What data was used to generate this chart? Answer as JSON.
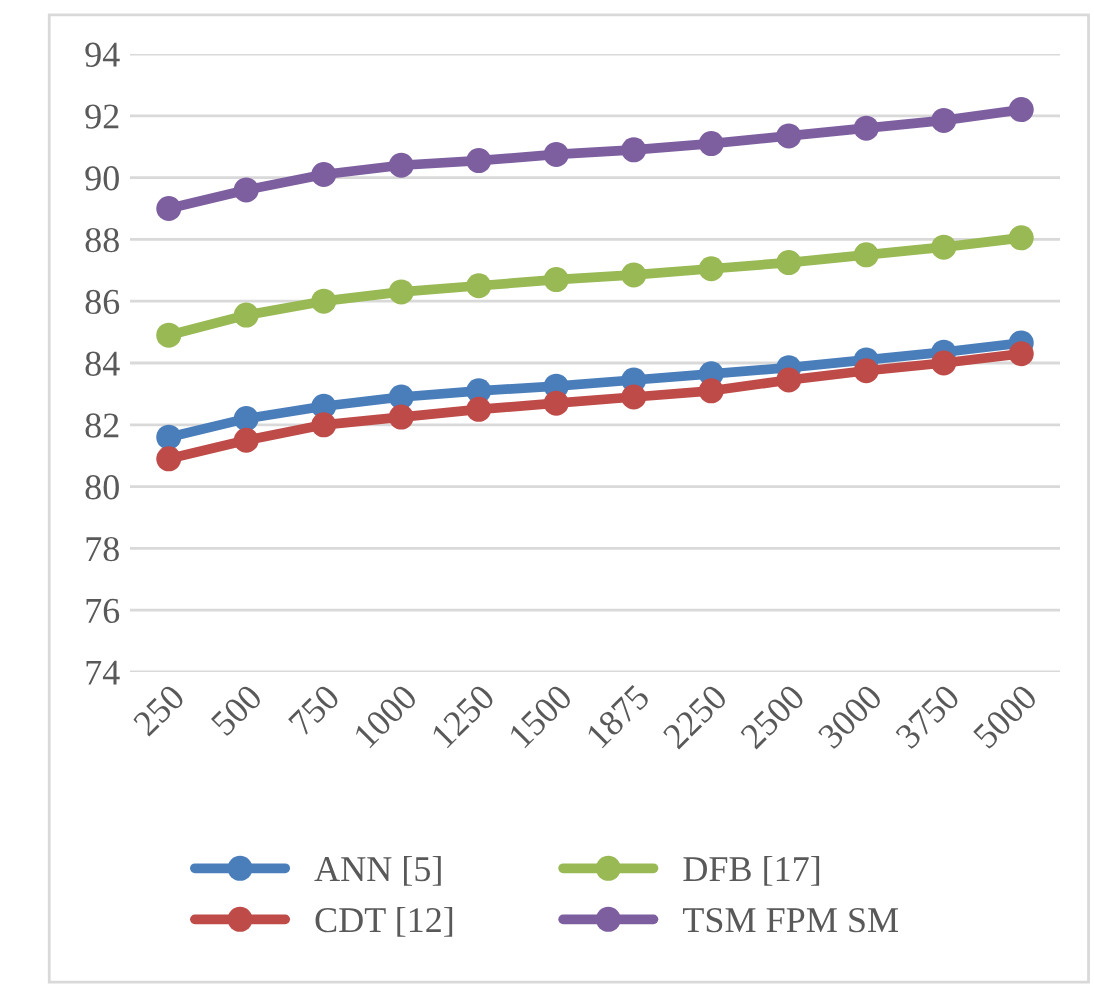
{
  "chart_data": {
    "type": "line",
    "categories": [
      "250",
      "500",
      "750",
      "1000",
      "1250",
      "1500",
      "1875",
      "2250",
      "2500",
      "3000",
      "3750",
      "5000"
    ],
    "series": [
      {
        "name": "ANN [5]",
        "color": "#4a7ebb",
        "values": [
          81.6,
          82.2,
          82.6,
          82.9,
          83.1,
          83.25,
          83.45,
          83.65,
          83.85,
          84.1,
          84.35,
          84.65
        ]
      },
      {
        "name": "CDT [12]",
        "color": "#be4b48",
        "values": [
          80.9,
          81.5,
          82.0,
          82.25,
          82.5,
          82.7,
          82.9,
          83.1,
          83.45,
          83.75,
          84.0,
          84.3
        ]
      },
      {
        "name": "DFB [17]",
        "color": "#98b954",
        "values": [
          84.9,
          85.55,
          86.0,
          86.3,
          86.5,
          86.7,
          86.85,
          87.05,
          87.25,
          87.5,
          87.75,
          88.05
        ]
      },
      {
        "name": "TSM FPM SM",
        "color": "#7d5fa0",
        "values": [
          89.0,
          89.6,
          90.1,
          90.4,
          90.55,
          90.75,
          90.9,
          91.1,
          91.35,
          91.6,
          91.85,
          92.2
        ]
      }
    ],
    "ylim": [
      74,
      94
    ],
    "yticks": [
      74,
      76,
      78,
      80,
      82,
      84,
      86,
      88,
      90,
      92,
      94
    ],
    "grid": "y",
    "legend": "bottom",
    "marker": "circle",
    "line_style": "solid"
  }
}
